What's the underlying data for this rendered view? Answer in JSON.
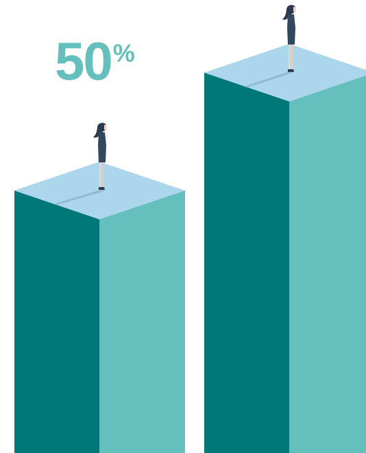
{
  "headline": {
    "number": "50",
    "percent_sign": "%"
  },
  "colors": {
    "top_face": "#acd6ec",
    "left_face": "#00787a",
    "right_face": "#64bfbd",
    "headline": "#64bfbd",
    "figure_hair": "#2c3a4f",
    "figure_dress": "#33475f",
    "figure_skin": "#f1d5c8",
    "shadow": "#8aaecb"
  },
  "illustration": {
    "columns": [
      {
        "name": "shorter-column",
        "figure": "woman-figure"
      },
      {
        "name": "taller-column",
        "figure": "woman-figure"
      }
    ]
  }
}
